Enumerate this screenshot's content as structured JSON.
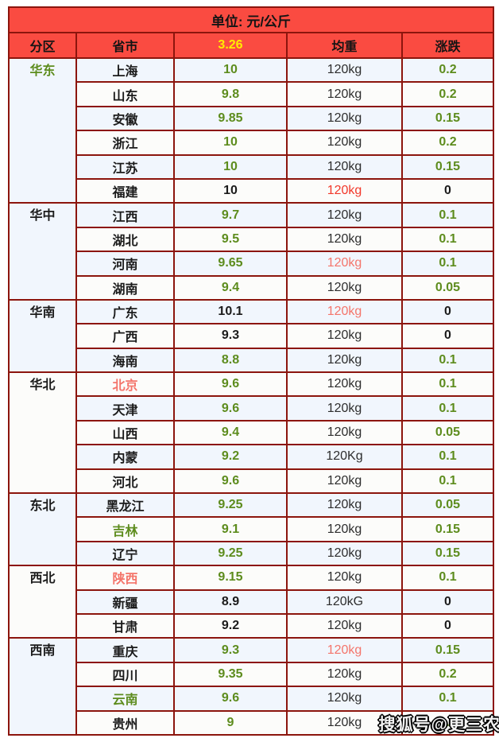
{
  "watermark": {
    "text": "搜狐号@更三农"
  },
  "palette": {
    "header_red": "#fa4b41",
    "header_yellow": "#ffec00",
    "value_green": "#5d8c1d",
    "value_black": "#1b1b1b",
    "alert_red": "#f2382a",
    "alert_salmon": "#f4756b",
    "inner_border": "#8c150d",
    "outer_border": "#3c0a05",
    "row_odd_bg": "#f1f6fd",
    "row_even_bg": "#fcfcfa"
  },
  "chart_data": {
    "type": "table",
    "title": "单位: 元/公斤",
    "columns": [
      "分区",
      "省市",
      "3.26",
      "均重",
      "涨跌"
    ],
    "regions": [
      {
        "name": "华东",
        "style": "green",
        "rows": [
          {
            "province": "上海",
            "p_style": "black",
            "price": "10",
            "v_style": "green",
            "weight": "120kg",
            "w_style": "black",
            "change": "0.2",
            "c_style": "green"
          },
          {
            "province": "山东",
            "p_style": "black",
            "price": "9.8",
            "v_style": "green",
            "weight": "120kg",
            "w_style": "black",
            "change": "0.2",
            "c_style": "green"
          },
          {
            "province": "安徽",
            "p_style": "black",
            "price": "9.85",
            "v_style": "green",
            "weight": "120kg",
            "w_style": "black",
            "change": "0.15",
            "c_style": "green"
          },
          {
            "province": "浙江",
            "p_style": "black",
            "price": "10",
            "v_style": "green",
            "weight": "120kg",
            "w_style": "black",
            "change": "0.2",
            "c_style": "green"
          },
          {
            "province": "江苏",
            "p_style": "black",
            "price": "10",
            "v_style": "green",
            "weight": "120kg",
            "w_style": "black",
            "change": "0.15",
            "c_style": "green"
          },
          {
            "province": "福建",
            "p_style": "black",
            "price": "10",
            "v_style": "black",
            "weight": "120kg",
            "w_style": "red",
            "change": "0",
            "c_style": "black"
          }
        ]
      },
      {
        "name": "华中",
        "style": "black",
        "rows": [
          {
            "province": "江西",
            "p_style": "black",
            "price": "9.7",
            "v_style": "green",
            "weight": "120kg",
            "w_style": "black",
            "change": "0.1",
            "c_style": "green"
          },
          {
            "province": "湖北",
            "p_style": "black",
            "price": "9.5",
            "v_style": "green",
            "weight": "120kg",
            "w_style": "black",
            "change": "0.1",
            "c_style": "green"
          },
          {
            "province": "河南",
            "p_style": "black",
            "price": "9.65",
            "v_style": "green",
            "weight": "120kg",
            "w_style": "salmon",
            "change": "0.1",
            "c_style": "green"
          },
          {
            "province": "湖南",
            "p_style": "black",
            "price": "9.4",
            "v_style": "green",
            "weight": "120kg",
            "w_style": "black",
            "change": "0.05",
            "c_style": "green"
          }
        ]
      },
      {
        "name": "华南",
        "style": "black",
        "rows": [
          {
            "province": "广东",
            "p_style": "black",
            "price": "10.1",
            "v_style": "black",
            "weight": "120kg",
            "w_style": "salmon",
            "change": "0",
            "c_style": "black"
          },
          {
            "province": "广西",
            "p_style": "black",
            "price": "9.3",
            "v_style": "black",
            "weight": "120kg",
            "w_style": "black",
            "change": "0",
            "c_style": "black"
          },
          {
            "province": "海南",
            "p_style": "black",
            "price": "8.8",
            "v_style": "green",
            "weight": "120kg",
            "w_style": "black",
            "change": "0.1",
            "c_style": "green"
          }
        ]
      },
      {
        "name": "华北",
        "style": "black",
        "rows": [
          {
            "province": "北京",
            "p_style": "salmon",
            "price": "9.6",
            "v_style": "green",
            "weight": "120kg",
            "w_style": "black",
            "change": "0.1",
            "c_style": "green"
          },
          {
            "province": "天津",
            "p_style": "black",
            "price": "9.6",
            "v_style": "green",
            "weight": "120kg",
            "w_style": "black",
            "change": "0.1",
            "c_style": "green"
          },
          {
            "province": "山西",
            "p_style": "black",
            "price": "9.4",
            "v_style": "green",
            "weight": "120kg",
            "w_style": "black",
            "change": "0.05",
            "c_style": "green"
          },
          {
            "province": "内蒙",
            "p_style": "black",
            "price": "9.2",
            "v_style": "green",
            "weight": "120Kg",
            "w_style": "black",
            "change": "0.1",
            "c_style": "green"
          },
          {
            "province": "河北",
            "p_style": "black",
            "price": "9.6",
            "v_style": "green",
            "weight": "120kg",
            "w_style": "black",
            "change": "0.1",
            "c_style": "green"
          }
        ]
      },
      {
        "name": "东北",
        "style": "black",
        "rows": [
          {
            "province": "黑龙江",
            "p_style": "black",
            "price": "9.25",
            "v_style": "green",
            "weight": "120kg",
            "w_style": "black",
            "change": "0.05",
            "c_style": "green"
          },
          {
            "province": "吉林",
            "p_style": "green",
            "price": "9.1",
            "v_style": "green",
            "weight": "120kg",
            "w_style": "black",
            "change": "0.15",
            "c_style": "green"
          },
          {
            "province": "辽宁",
            "p_style": "black",
            "price": "9.25",
            "v_style": "green",
            "weight": "120kg",
            "w_style": "black",
            "change": "0.15",
            "c_style": "green"
          }
        ]
      },
      {
        "name": "西北",
        "style": "black",
        "rows": [
          {
            "province": "陕西",
            "p_style": "salmon",
            "price": "9.15",
            "v_style": "green",
            "weight": "120kg",
            "w_style": "black",
            "change": "0.1",
            "c_style": "green"
          },
          {
            "province": "新疆",
            "p_style": "black",
            "price": "8.9",
            "v_style": "black",
            "weight": "120kG",
            "w_style": "black",
            "change": "0",
            "c_style": "black"
          },
          {
            "province": "甘肃",
            "p_style": "black",
            "price": "9.2",
            "v_style": "black",
            "weight": "120kg",
            "w_style": "black",
            "change": "0",
            "c_style": "black"
          }
        ]
      },
      {
        "name": "西南",
        "style": "black",
        "rows": [
          {
            "province": "重庆",
            "p_style": "black",
            "price": "9.3",
            "v_style": "green",
            "weight": "120kg",
            "w_style": "salmon",
            "change": "0.15",
            "c_style": "green"
          },
          {
            "province": "四川",
            "p_style": "black",
            "price": "9.35",
            "v_style": "green",
            "weight": "120kg",
            "w_style": "black",
            "change": "0.2",
            "c_style": "green"
          },
          {
            "province": "云南",
            "p_style": "green",
            "price": "9.6",
            "v_style": "green",
            "weight": "120kg",
            "w_style": "black",
            "change": "0.1",
            "c_style": "green"
          },
          {
            "province": "贵州",
            "p_style": "black",
            "price": "9",
            "v_style": "green",
            "weight": "120kg",
            "w_style": "black",
            "change": "0.1",
            "c_style": "green"
          }
        ]
      }
    ]
  }
}
